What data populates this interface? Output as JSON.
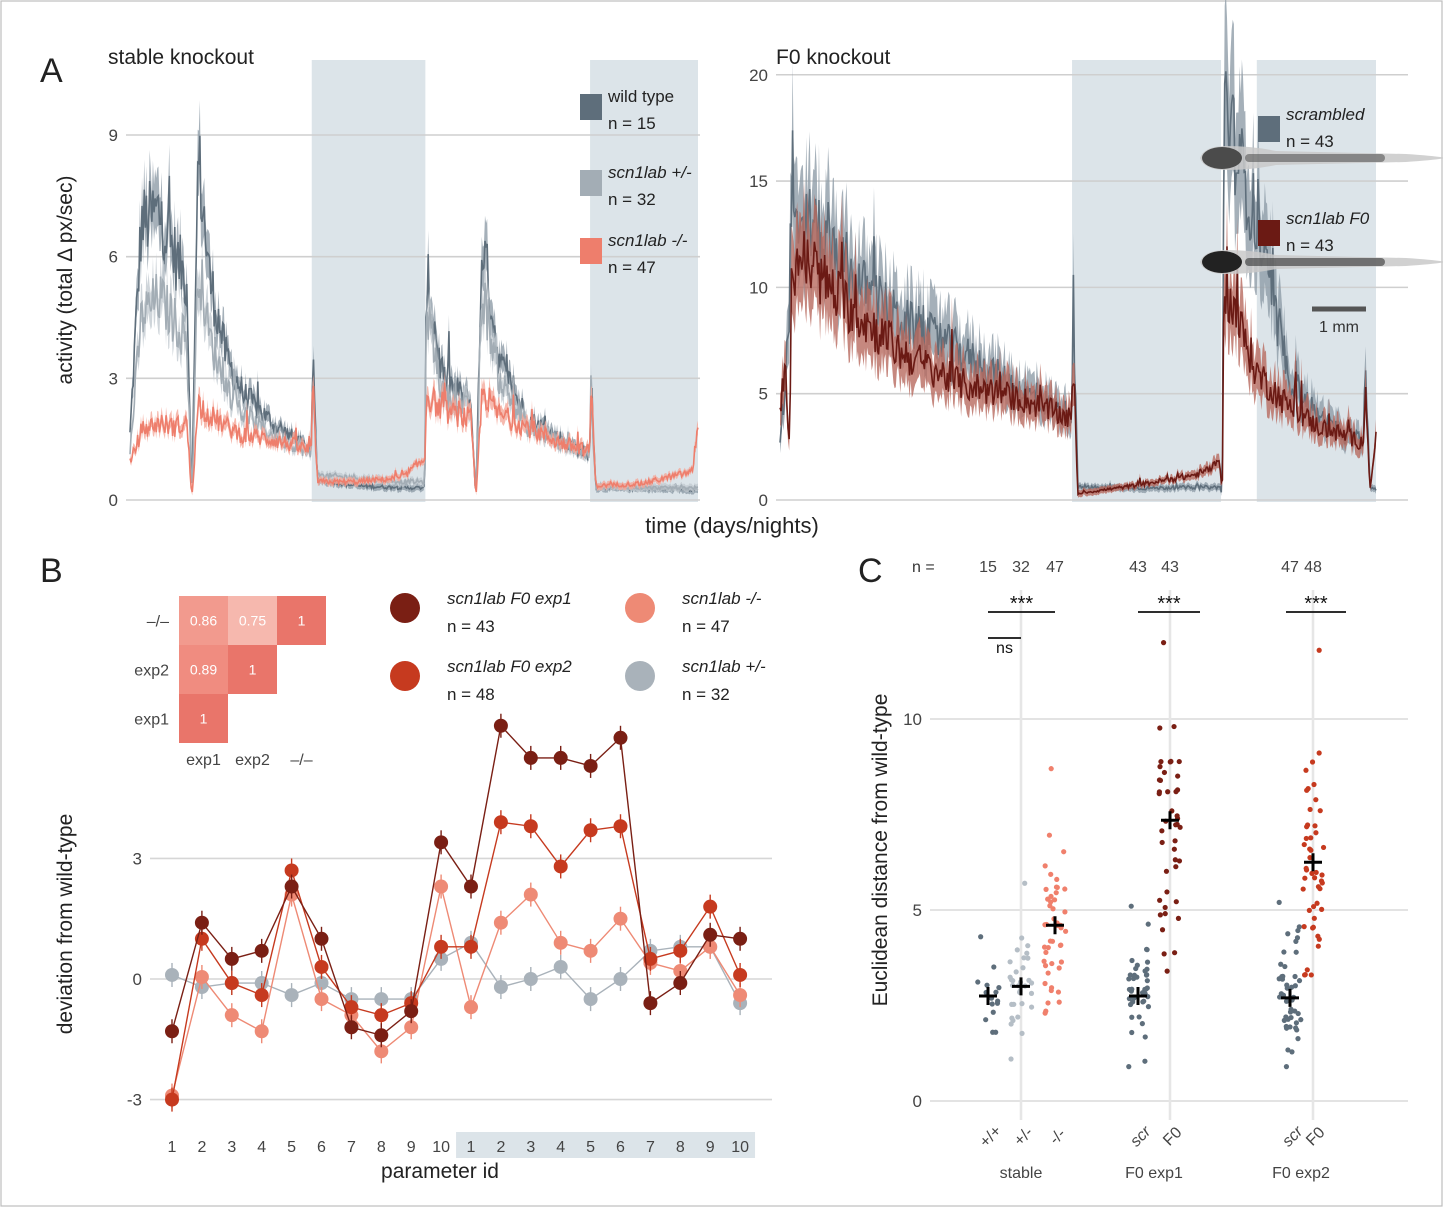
{
  "chart_data": [
    {
      "panel": "A",
      "type": "line",
      "title": "stable knockout",
      "ylabel": "activity (total Δ px/sec)",
      "xlabel": "time (days/nights)",
      "ylim": [
        0,
        10.8
      ],
      "yticks": [
        0,
        3,
        6,
        9
      ],
      "grid": "horizontal",
      "night_intervals": [
        [
          0.32,
          0.52
        ],
        [
          0.81,
          1.0
        ]
      ],
      "legend_position": "top-right",
      "series": [
        {
          "name": "wild type",
          "n_label": "n = 15",
          "color": "#5E6E7B",
          "band_color": "#8E9CA8",
          "keypoints": [
            [
              0,
              1.6
            ],
            [
              0.02,
              6.8
            ],
            [
              0.05,
              7.1
            ],
            [
              0.08,
              6.0
            ],
            [
              0.1,
              5.4
            ],
            [
              0.109,
              0.1
            ],
            [
              0.12,
              8.5
            ],
            [
              0.14,
              5.5
            ],
            [
              0.17,
              3.5
            ],
            [
              0.2,
              2.6
            ],
            [
              0.25,
              1.9
            ],
            [
              0.3,
              1.4
            ],
            [
              0.319,
              1.2
            ],
            [
              0.322,
              3.5
            ],
            [
              0.33,
              0.5
            ],
            [
              0.4,
              0.35
            ],
            [
              0.48,
              0.3
            ],
            [
              0.519,
              0.3
            ],
            [
              0.522,
              5.6
            ],
            [
              0.55,
              3.0
            ],
            [
              0.6,
              2.4
            ],
            [
              0.609,
              0.05
            ],
            [
              0.62,
              6.5
            ],
            [
              0.65,
              3.4
            ],
            [
              0.7,
              2.0
            ],
            [
              0.76,
              1.5
            ],
            [
              0.809,
              1.1
            ],
            [
              0.812,
              2.8
            ],
            [
              0.82,
              0.3
            ],
            [
              0.9,
              0.28
            ],
            [
              1.0,
              0.25
            ]
          ]
        },
        {
          "name": "scn1lab +/-",
          "n_label": "n = 32",
          "color": "#A3ADB5",
          "band_color": "#C3CBD1",
          "keypoints": [
            [
              0,
              1.2
            ],
            [
              0.02,
              4.5
            ],
            [
              0.05,
              5.0
            ],
            [
              0.08,
              4.4
            ],
            [
              0.1,
              3.9
            ],
            [
              0.109,
              0.1
            ],
            [
              0.12,
              5.9
            ],
            [
              0.14,
              4.0
            ],
            [
              0.17,
              2.8
            ],
            [
              0.2,
              2.1
            ],
            [
              0.25,
              1.6
            ],
            [
              0.3,
              1.3
            ],
            [
              0.319,
              1.1
            ],
            [
              0.322,
              3.0
            ],
            [
              0.33,
              0.6
            ],
            [
              0.4,
              0.55
            ],
            [
              0.48,
              0.45
            ],
            [
              0.519,
              0.45
            ],
            [
              0.522,
              4.8
            ],
            [
              0.55,
              2.6
            ],
            [
              0.6,
              2.2
            ],
            [
              0.609,
              0.05
            ],
            [
              0.62,
              5.2
            ],
            [
              0.65,
              3.0
            ],
            [
              0.7,
              1.8
            ],
            [
              0.76,
              1.4
            ],
            [
              0.809,
              1.1
            ],
            [
              0.812,
              2.5
            ],
            [
              0.82,
              0.35
            ],
            [
              0.9,
              0.3
            ],
            [
              1.0,
              0.3
            ]
          ]
        },
        {
          "name": "scn1lab -/-",
          "n_label": "n = 47",
          "color": "#EE7E6C",
          "band_color": "#F4A99B",
          "keypoints": [
            [
              0,
              0.9
            ],
            [
              0.02,
              1.7
            ],
            [
              0.05,
              1.9
            ],
            [
              0.08,
              1.8
            ],
            [
              0.1,
              1.9
            ],
            [
              0.109,
              0.05
            ],
            [
              0.12,
              2.4
            ],
            [
              0.14,
              2.1
            ],
            [
              0.17,
              1.8
            ],
            [
              0.2,
              1.6
            ],
            [
              0.25,
              1.5
            ],
            [
              0.3,
              1.3
            ],
            [
              0.319,
              1.2
            ],
            [
              0.322,
              2.8
            ],
            [
              0.33,
              0.45
            ],
            [
              0.4,
              0.45
            ],
            [
              0.48,
              0.55
            ],
            [
              0.5,
              0.8
            ],
            [
              0.519,
              1.0
            ],
            [
              0.522,
              2.6
            ],
            [
              0.55,
              2.2
            ],
            [
              0.6,
              2.0
            ],
            [
              0.609,
              0.05
            ],
            [
              0.62,
              2.7
            ],
            [
              0.65,
              2.1
            ],
            [
              0.7,
              1.8
            ],
            [
              0.76,
              1.4
            ],
            [
              0.809,
              1.2
            ],
            [
              0.812,
              2.8
            ],
            [
              0.82,
              0.35
            ],
            [
              0.9,
              0.4
            ],
            [
              0.99,
              0.7
            ],
            [
              1.0,
              1.9
            ]
          ]
        }
      ]
    },
    {
      "panel": "A",
      "type": "line",
      "title": "F0 knockout",
      "xlabel": "time (days/nights)",
      "ylim": [
        0,
        20.6
      ],
      "yticks": [
        0,
        5,
        10,
        15,
        20
      ],
      "grid": "horizontal",
      "night_intervals": [
        [
          0.49,
          0.74
        ],
        [
          0.8,
          1.0
        ]
      ],
      "scale_bar_label": "1 mm",
      "legend_position": "top-right",
      "series": [
        {
          "name": "scrambled",
          "n_label": "n = 43",
          "color": "#5E6E7B",
          "band_color": "#8E9CA8",
          "keypoints": [
            [
              0,
              2.8
            ],
            [
              0.01,
              6.0
            ],
            [
              0.015,
              8.5
            ],
            [
              0.02,
              15.9
            ],
            [
              0.03,
              11.5
            ],
            [
              0.05,
              13.0
            ],
            [
              0.1,
              11.0
            ],
            [
              0.2,
              8.5
            ],
            [
              0.3,
              7.0
            ],
            [
              0.4,
              5.2
            ],
            [
              0.489,
              4.0
            ],
            [
              0.492,
              8.4
            ],
            [
              0.5,
              0.6
            ],
            [
              0.6,
              0.55
            ],
            [
              0.7,
              0.6
            ],
            [
              0.739,
              0.6
            ],
            [
              0.742,
              0.05
            ],
            [
              0.745,
              19.2
            ],
            [
              0.76,
              17.0
            ],
            [
              0.8,
              13.0
            ],
            [
              0.85,
              6.0
            ],
            [
              0.9,
              4.0
            ],
            [
              0.95,
              3.0
            ],
            [
              0.979,
              2.8
            ],
            [
              0.982,
              6.0
            ],
            [
              0.99,
              0.6
            ],
            [
              1.0,
              0.5
            ]
          ]
        },
        {
          "name": "scn1lab F0",
          "n_label": "n = 43",
          "color": "#6B1A14",
          "band_color": "#B86A5F",
          "keypoints": [
            [
              0,
              4.5
            ],
            [
              0.01,
              6.0
            ],
            [
              0.015,
              2.4
            ],
            [
              0.02,
              9.5
            ],
            [
              0.03,
              11.5
            ],
            [
              0.05,
              11.0
            ],
            [
              0.1,
              9.5
            ],
            [
              0.2,
              7.0
            ],
            [
              0.3,
              5.5
            ],
            [
              0.4,
              4.8
            ],
            [
              0.489,
              3.8
            ],
            [
              0.492,
              6.0
            ],
            [
              0.5,
              0.3
            ],
            [
              0.6,
              0.7
            ],
            [
              0.7,
              1.2
            ],
            [
              0.739,
              1.7
            ],
            [
              0.742,
              0.05
            ],
            [
              0.745,
              10.0
            ],
            [
              0.76,
              9.0
            ],
            [
              0.8,
              6.0
            ],
            [
              0.85,
              4.5
            ],
            [
              0.9,
              3.5
            ],
            [
              0.95,
              3.0
            ],
            [
              0.979,
              2.7
            ],
            [
              0.982,
              5.5
            ],
            [
              0.99,
              0.4
            ],
            [
              1.0,
              3.3
            ]
          ]
        }
      ]
    },
    {
      "panel": "B",
      "type": "heatmap",
      "rows": [
        "–/–",
        "exp2",
        "exp1"
      ],
      "cols": [
        "exp1",
        "exp2",
        "–/–"
      ],
      "cells": [
        {
          "row": "–/–",
          "col": "exp1",
          "value": "0.86"
        },
        {
          "row": "–/–",
          "col": "exp2",
          "value": "0.75"
        },
        {
          "row": "–/–",
          "col": "–/–",
          "value": "1"
        },
        {
          "row": "exp2",
          "col": "exp1",
          "value": "0.89"
        },
        {
          "row": "exp2",
          "col": "exp2",
          "value": "1"
        },
        {
          "row": "exp1",
          "col": "exp1",
          "value": "1"
        }
      ]
    },
    {
      "panel": "B",
      "type": "line",
      "xlabel": "parameter id",
      "ylabel": "deviation from wild-type",
      "ylim": [
        -3.3,
        6.5
      ],
      "yticks": [
        -3,
        0,
        3
      ],
      "grid": "horizontal",
      "categories": [
        "1",
        "2",
        "3",
        "4",
        "5",
        "6",
        "7",
        "8",
        "9",
        "10",
        "1",
        "2",
        "3",
        "4",
        "5",
        "6",
        "7",
        "8",
        "9",
        "10"
      ],
      "shaded_category_range": [
        10,
        19
      ],
      "series": [
        {
          "name": "scn1lab F0 exp1",
          "n_label": "n = 43",
          "color": "#7A1F14",
          "values": [
            -1.3,
            1.4,
            0.5,
            0.7,
            2.3,
            1.0,
            -1.2,
            -1.4,
            -0.8,
            3.4,
            2.3,
            6.3,
            5.5,
            5.5,
            5.3,
            6.0,
            -0.6,
            -0.1,
            1.1,
            1.0
          ]
        },
        {
          "name": "scn1lab F0 exp2",
          "n_label": "n = 48",
          "color": "#C63A1F",
          "values": [
            -3.0,
            1.0,
            -0.1,
            -0.4,
            2.7,
            0.3,
            -0.7,
            -0.9,
            -0.6,
            0.8,
            0.8,
            3.9,
            3.8,
            2.8,
            3.7,
            3.8,
            0.5,
            0.7,
            1.8,
            0.1
          ]
        },
        {
          "name": "scn1lab -/-",
          "n_label": "n = 47",
          "color": "#EE8A75",
          "values": [
            -2.9,
            0.05,
            -0.9,
            -1.3,
            2.1,
            -0.5,
            -0.9,
            -1.8,
            -1.2,
            2.3,
            -0.7,
            1.4,
            2.1,
            0.9,
            0.7,
            1.5,
            0.4,
            0.2,
            0.8,
            -0.4
          ]
        },
        {
          "name": "scn1lab +/-",
          "n_label": "n = 32",
          "color": "#A9B2BA",
          "values": [
            0.1,
            -0.2,
            -0.1,
            -0.1,
            -0.4,
            -0.1,
            -0.5,
            -0.5,
            -0.5,
            0.5,
            0.9,
            -0.2,
            0.0,
            0.3,
            -0.5,
            0.0,
            0.7,
            0.8,
            0.8,
            -0.6
          ]
        }
      ]
    },
    {
      "panel": "C",
      "type": "scatter",
      "ylabel": "Euclidean distance from wild-type",
      "ylim": [
        0,
        12.5
      ],
      "yticks": [
        0,
        5,
        10
      ],
      "grid": "both",
      "n_header": "n =",
      "groups": [
        {
          "experiment": "stable",
          "labels": [
            "+/+",
            "+/-",
            "-/-"
          ]
        },
        {
          "experiment": "F0 exp1",
          "labels": [
            "scr",
            "F0"
          ]
        },
        {
          "experiment": "F0 exp2",
          "labels": [
            "scr",
            "F0"
          ]
        }
      ],
      "series": [
        {
          "group": "stable",
          "label": "+/+",
          "n": 15,
          "mean": 2.75,
          "color": "#5E6E7B",
          "ymin": 1.8,
          "ymax": 4.3
        },
        {
          "group": "stable",
          "label": "+/-",
          "n": 32,
          "mean": 3.0,
          "color": "#B5BEC6",
          "ymin": 1.1,
          "ymax": 5.7
        },
        {
          "group": "stable",
          "label": "-/-",
          "n": 47,
          "mean": 4.6,
          "color": "#F0806C",
          "ymin": 2.3,
          "ymax": 8.7
        },
        {
          "group": "F0 exp1",
          "label": "scr",
          "n": 43,
          "mean": 2.75,
          "color": "#5E6E7B",
          "ymin": 0.9,
          "ymax": 5.1
        },
        {
          "group": "F0 exp1",
          "label": "F0",
          "n": 43,
          "mean": 7.35,
          "color": "#7A1F14",
          "ymin": 3.4,
          "ymax": 12.0
        },
        {
          "group": "F0 exp2",
          "label": "scr",
          "n": 47,
          "mean": 2.7,
          "color": "#5E6E7B",
          "ymin": 0.9,
          "ymax": 5.2
        },
        {
          "group": "F0 exp2",
          "label": "F0",
          "n": 48,
          "mean": 6.25,
          "color": "#C63A1F",
          "ymin": 3.3,
          "ymax": 11.8
        }
      ],
      "significance": [
        {
          "text": "***",
          "between": [
            "stable:+/+",
            "stable:-/-"
          ]
        },
        {
          "text": "ns",
          "between": [
            "stable:+/+",
            "stable:+/-"
          ]
        },
        {
          "text": "***",
          "between": [
            "F0 exp1:scr",
            "F0 exp1:F0"
          ]
        },
        {
          "text": "***",
          "between": [
            "F0 exp2:scr",
            "F0 exp2:F0"
          ]
        }
      ]
    }
  ],
  "panel_labels": [
    "A",
    "B",
    "C"
  ]
}
